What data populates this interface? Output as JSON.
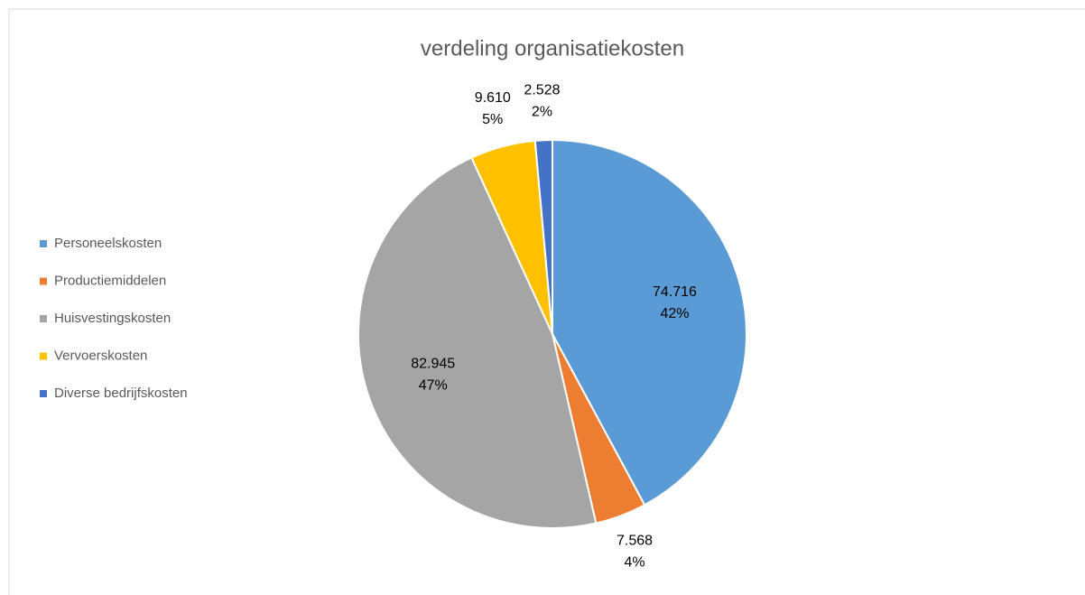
{
  "chart_data": {
    "type": "pie",
    "title": "verdeling organisatiekosten",
    "categories": [
      "Personeelskosten",
      "Productiemiddelen",
      "Huisvestingskosten",
      "Vervoerskosten",
      "Diverse bedrijfskosten"
    ],
    "values": [
      74716,
      7568,
      82945,
      9610,
      2528
    ],
    "value_labels": [
      "74.716",
      "7.568",
      "82.945",
      "9.610",
      "2.528"
    ],
    "percents": [
      42,
      4,
      47,
      5,
      2
    ],
    "percent_labels": [
      "42%",
      "4%",
      "47%",
      "5%",
      "2%"
    ],
    "colors": [
      "#5b9bd5",
      "#ed7d31",
      "#a5a5a5",
      "#ffc000",
      "#4472c4"
    ],
    "legend": "left"
  }
}
